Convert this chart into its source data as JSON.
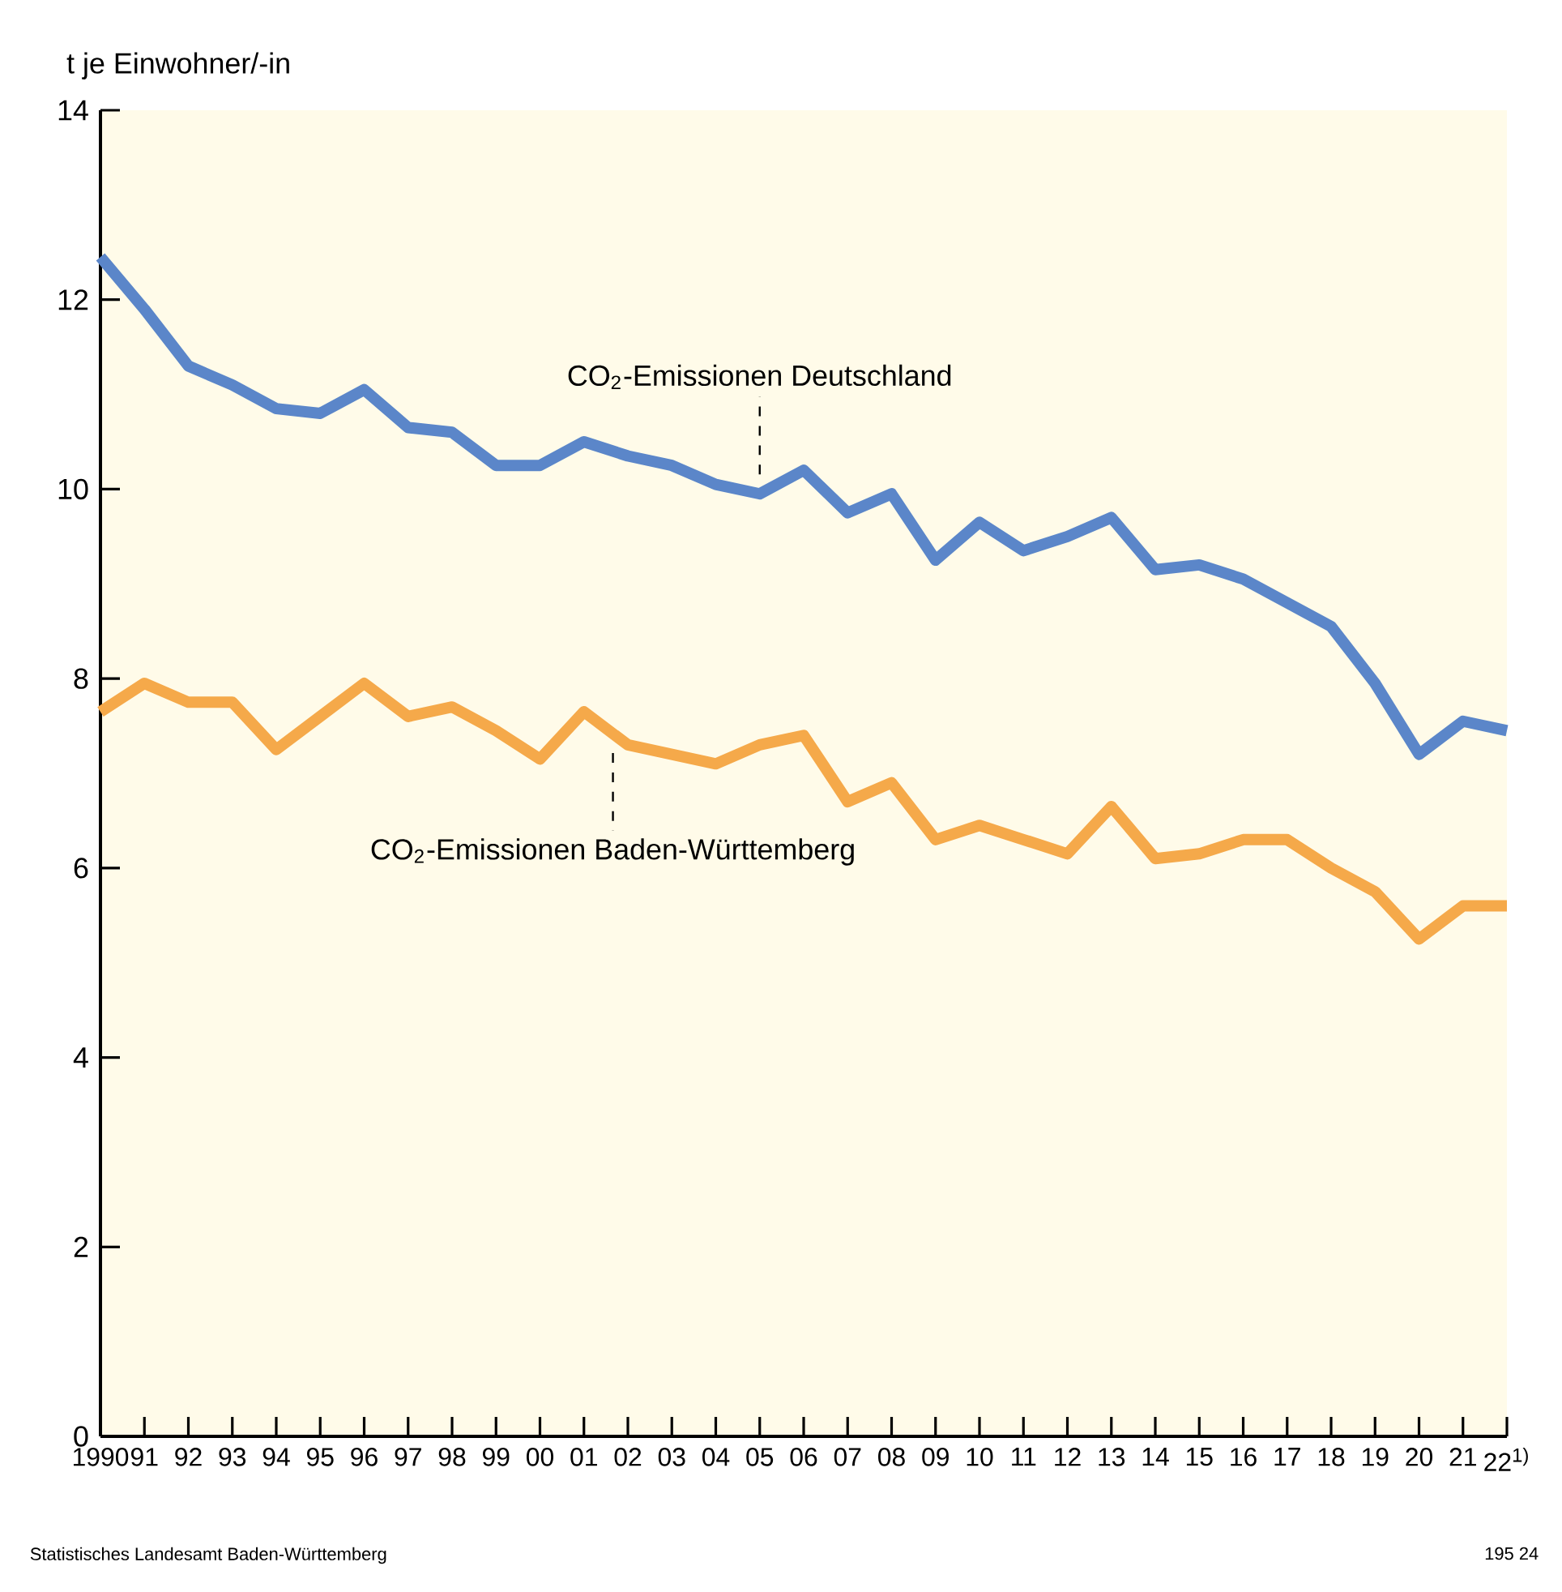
{
  "chart_data": {
    "type": "line",
    "ylabel": "t je Einwohner/-in",
    "categories": [
      "1990",
      "91",
      "92",
      "93",
      "94",
      "95",
      "96",
      "97",
      "98",
      "99",
      "00",
      "01",
      "02",
      "03",
      "04",
      "05",
      "06",
      "07",
      "08",
      "09",
      "10",
      "11",
      "12",
      "13",
      "14",
      "15",
      "16",
      "17",
      "18",
      "19",
      "20",
      "21",
      "22$^{1)}$"
    ],
    "series": [
      {
        "name": "CO$_{2}$-Emissionen Deutschland",
        "color": "#5b86c9",
        "values": [
          12.45,
          11.9,
          11.3,
          11.1,
          10.85,
          10.8,
          11.05,
          10.65,
          10.6,
          10.25,
          10.25,
          10.5,
          10.35,
          10.25,
          10.05,
          9.95,
          10.2,
          9.75,
          9.95,
          9.25,
          9.65,
          9.35,
          9.5,
          9.7,
          9.15,
          9.2,
          9.05,
          8.8,
          8.55,
          7.95,
          7.2,
          7.55,
          7.45
        ]
      },
      {
        "name": "CO$_{2}$-Emissionen Baden-Württemberg",
        "color": "#f5a94a",
        "values": [
          7.65,
          7.95,
          7.75,
          7.75,
          7.25,
          7.6,
          7.95,
          7.6,
          7.7,
          7.45,
          7.15,
          7.65,
          7.3,
          7.2,
          7.1,
          7.3,
          7.4,
          6.7,
          6.9,
          6.3,
          6.45,
          6.3,
          6.15,
          6.65,
          6.1,
          6.15,
          6.3,
          6.3,
          6.0,
          5.75,
          5.25,
          5.6,
          5.6
        ]
      }
    ],
    "ylim": [
      0,
      14
    ],
    "yticks": [
      0,
      2,
      4,
      6,
      8,
      10,
      12,
      14
    ],
    "grid": false,
    "marker": "none",
    "line_style": "solid",
    "annotations": [
      "Statistisches Landesamt Baden-Württemberg",
      "195 24"
    ]
  }
}
